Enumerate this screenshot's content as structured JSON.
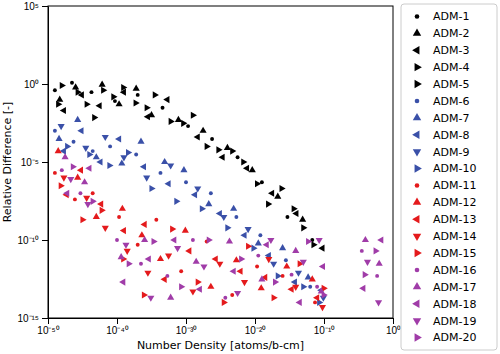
{
  "chart_data": {
    "type": "scatter",
    "x_label": "Number Density [atoms/b-cm]",
    "y_label": "Relative Difference [-]",
    "log": true,
    "grid": false,
    "legend": "right",
    "xlim": [
      1e-50,
      1
    ],
    "ylim": [
      1e-15,
      100000
    ],
    "xticks": [
      {
        "value": 1e-50,
        "label": "10⁻⁵⁰"
      },
      {
        "value": 1e-40,
        "label": "10⁻⁴⁰"
      },
      {
        "value": 1e-30,
        "label": "10⁻³⁰"
      },
      {
        "value": 1e-20,
        "label": "10⁻²⁰"
      },
      {
        "value": 1e-10,
        "label": "10⁻¹⁰"
      },
      {
        "value": 1,
        "label": "10⁰"
      }
    ],
    "yticks": [
      {
        "value": 1e-15,
        "label": "10⁻¹⁵"
      },
      {
        "value": 1e-10,
        "label": "10⁻¹⁰"
      },
      {
        "value": 1e-05,
        "label": "10⁻⁵"
      },
      {
        "value": 1,
        "label": "10⁰"
      },
      {
        "value": 100000,
        "label": "10⁵"
      }
    ],
    "series": [
      {
        "name": "ADM-1",
        "color": "#000000",
        "marker": "point",
        "x": [
          1e-49,
          3e-47,
          2e-44,
          5e-41,
          1e-37,
          4e-34,
          2e-30,
          6e-27,
          3e-23,
          1e-19,
          5e-16,
          2e-12
        ],
        "values": [
          0.4,
          1.2,
          0.3,
          0.08,
          0.2,
          0.03,
          0.002,
          0.0003,
          2e-05,
          5e-07,
          3e-09,
          1e-10
        ]
      },
      {
        "name": "ADM-2",
        "color": "#000000",
        "marker": "triangle-up",
        "x": [
          5e-49,
          1e-46,
          7e-43,
          2e-40,
          6e-38,
          1e-35,
          8e-32,
          3e-28,
          1e-24,
          4e-21,
          2e-17,
          8e-14
        ],
        "values": [
          0.1,
          0.6,
          0.9,
          0.05,
          0.5,
          0.01,
          0.005,
          0.001,
          8e-05,
          3e-06,
          6e-08,
          2e-09
        ]
      },
      {
        "name": "ADM-3",
        "color": "#000000",
        "marker": "triangle-left",
        "x": [
          2e-48,
          8e-46,
          3e-43,
          1e-39,
          3e-36,
          2e-33,
          5e-29,
          2e-25,
          7e-22,
          3e-18,
          1e-14,
          6e-11
        ],
        "values": [
          0.02,
          0.2,
          0.04,
          0.3,
          0.008,
          0.1,
          0.0004,
          2e-05,
          4e-06,
          1e-07,
          5e-09,
          3e-11
        ]
      },
      {
        "name": "ADM-4",
        "color": "#000000",
        "marker": "triangle-right",
        "x": [
          1e-48,
          4e-45,
          1e-42,
          8e-40,
          2e-36,
          6e-33,
          1e-29,
          5e-26,
          2e-22,
          8e-19,
          4e-15,
          3e-12
        ],
        "values": [
          0.8,
          0.05,
          0.4,
          0.6,
          0.03,
          0.004,
          0.01,
          6e-05,
          1e-05,
          2e-08,
          1e-08,
          5e-11
        ]
      },
      {
        "name": "ADM-5",
        "color": "#000000",
        "marker": "triangle-right",
        "x": [
          3e-49,
          2e-46,
          5e-44,
          3e-41,
          5e-38,
          3e-35,
          4e-31,
          1e-27,
          5e-24,
          2e-20,
          7e-17,
          1e-13
        ],
        "values": [
          0.05,
          0.3,
          0.007,
          0.15,
          0.06,
          0.2,
          0.003,
          0.0001,
          5e-05,
          4e-07,
          2e-07,
          6e-10
        ]
      },
      {
        "name": "ADM-6",
        "color": "#3a50a8",
        "marker": "point",
        "x": [
          1e-49,
          5e-47,
          3e-44,
          1e-41,
          6e-38,
          2e-34,
          1e-30,
          4e-27,
          2e-23,
          6e-20,
          3e-16,
          1e-12
        ],
        "values": [
          0.001,
          0.0002,
          5e-05,
          0.0001,
          3e-05,
          2e-06,
          5e-07,
          1e-07,
          3e-09,
          2e-10,
          5e-12,
          1e-13
        ]
      },
      {
        "name": "ADM-7",
        "color": "#3a50a8",
        "marker": "triangle-up",
        "x": [
          4e-49,
          2e-46,
          1e-43,
          5e-40,
          3e-37,
          8e-34,
          5e-31,
          2e-27,
          8e-24,
          3e-20,
          1e-16,
          5e-13
        ],
        "values": [
          0.0003,
          0.005,
          2e-05,
          8e-06,
          0.0002,
          1e-05,
          3e-06,
          2e-08,
          1e-08,
          6e-11,
          3e-11,
          4e-13
        ]
      },
      {
        "name": "ADM-8",
        "color": "#3a50a8",
        "marker": "triangle-left",
        "x": [
          2e-48,
          7e-46,
          4e-43,
          2e-40,
          8e-37,
          3e-33,
          2e-29,
          8e-26,
          3e-22,
          1e-18,
          6e-15,
          4e-11
        ],
        "values": [
          5e-05,
          0.001,
          1e-05,
          0.0003,
          5e-06,
          4e-07,
          8e-08,
          5e-09,
          2e-10,
          1e-11,
          2e-13,
          6e-14
        ]
      },
      {
        "name": "ADM-9",
        "color": "#3a50a8",
        "marker": "triangle-down",
        "x": [
          8e-49,
          3e-45,
          2e-42,
          1e-39,
          2e-36,
          6e-33,
          5e-29,
          3e-25,
          1e-21,
          5e-18,
          2e-14,
          8e-11
        ],
        "values": [
          0.002,
          8e-05,
          0.0004,
          2e-05,
          1e-06,
          6e-06,
          2e-07,
          3e-09,
          5e-10,
          3e-12,
          8e-13,
          2e-14
        ]
      },
      {
        "name": "ADM-10",
        "color": "#3a50a8",
        "marker": "triangle-right",
        "x": [
          6e-48,
          1e-44,
          8e-42,
          4e-39,
          1e-35,
          4e-32,
          2e-28,
          1e-24,
          6e-21,
          2e-17,
          1e-13,
          2e-11
        ],
        "values": [
          0.0001,
          3e-05,
          6e-06,
          4e-05,
          2e-07,
          3e-08,
          1e-08,
          6e-10,
          3e-11,
          5e-13,
          1e-13,
          1e-14
        ]
      },
      {
        "name": "ADM-11",
        "color": "#e41a1c",
        "marker": "point",
        "x": [
          1e-49,
          8e-47,
          3e-44,
          2e-40,
          1e-37,
          5e-35,
          2e-31,
          1e-27,
          5e-24,
          2e-20,
          1e-16,
          5e-12
        ],
        "values": [
          2e-06,
          4e-08,
          1e-07,
          3e-09,
          5e-11,
          2e-09,
          1e-12,
          8e-11,
          3e-14,
          2e-12,
          5e-13,
          1e-14
        ]
      },
      {
        "name": "ADM-12",
        "color": "#e41a1c",
        "marker": "triangle-up",
        "x": [
          3e-49,
          2e-46,
          1e-43,
          6e-40,
          4e-37,
          2e-34,
          8e-31,
          4e-27,
          2e-23,
          8e-20,
          4e-16,
          2e-12
        ],
        "values": [
          5e-05,
          1e-06,
          3e-09,
          1e-08,
          2e-10,
          6e-12,
          4e-10,
          1e-13,
          5e-12,
          8e-14,
          2e-12,
          3e-13
        ]
      },
      {
        "name": "ADM-13",
        "color": "#e41a1c",
        "marker": "triangle-left",
        "x": [
          5e-48,
          6e-46,
          5e-43,
          1e-39,
          1e-36,
          8e-34,
          3e-30,
          2e-26,
          8e-23,
          3e-19,
          2e-15,
          1e-11
        ],
        "values": [
          8e-08,
          3e-06,
          2e-08,
          4e-10,
          1e-09,
          3e-13,
          2e-11,
          6e-12,
          1e-12,
          4e-13,
          7e-14,
          2e-14
        ]
      },
      {
        "name": "ADM-14",
        "color": "#e41a1c",
        "marker": "triangle-down",
        "x": [
          2e-48,
          4e-45,
          2e-42,
          3e-39,
          3e-36,
          3e-33,
          1e-29,
          8e-26,
          3e-22,
          1e-18,
          8e-15,
          6e-11
        ],
        "values": [
          1e-06,
          5e-08,
          6e-10,
          2e-11,
          8e-13,
          1e-11,
          5e-14,
          3e-12,
          2e-13,
          6e-12,
          1e-13,
          5e-15
        ]
      },
      {
        "name": "ADM-15",
        "color": "#e41a1c",
        "marker": "triangle-right",
        "x": [
          7e-49,
          1e-45,
          6e-43,
          8e-40,
          8e-37,
          1e-32,
          5e-29,
          3e-25,
          1e-21,
          5e-18,
          3e-14,
          9e-11
        ],
        "values": [
          3e-07,
          2e-09,
          8e-09,
          6e-12,
          3e-14,
          5e-10,
          2e-13,
          1e-14,
          4e-11,
          2e-14,
          3e-12,
          8e-14
        ]
      },
      {
        "name": "ADM-16",
        "color": "#a03ca8",
        "marker": "point",
        "x": [
          1e-48,
          5e-46,
          1e-40,
          3e-37,
          2e-33,
          1e-29,
          5e-25,
          3e-20,
          2e-15,
          1e-11,
          3e-05,
          0.005
        ],
        "values": [
          3e-06,
          1e-07,
          1e-10,
          3e-12,
          5e-13,
          1e-10,
          2e-14,
          1e-11,
          6e-13,
          1e-13,
          2e-11,
          5e-13
        ]
      },
      {
        "name": "ADM-17",
        "color": "#a03ca8",
        "marker": "triangle-up",
        "x": [
          3e-48,
          2e-45,
          4e-40,
          1e-36,
          6e-33,
          3e-29,
          2e-24,
          1e-19,
          8e-15,
          4e-11,
          0.0001,
          0.01
        ],
        "values": [
          2e-05,
          5e-07,
          8e-12,
          1e-10,
          2e-14,
          4e-12,
          8e-11,
          3e-13,
          2e-11,
          5e-14,
          1e-10,
          3e-12
        ]
      },
      {
        "name": "ADM-18",
        "color": "#a03ca8",
        "marker": "triangle-left",
        "x": [
          6e-48,
          1e-44,
          8e-40,
          4e-36,
          2e-32,
          1e-28,
          8e-24,
          5e-19,
          3e-14,
          7e-11,
          5e-05,
          0.02
        ],
        "values": [
          1e-07,
          4e-06,
          2e-13,
          6e-12,
          1e-10,
          7e-14,
          1e-12,
          5e-11,
          1e-14,
          2e-12,
          8e-14,
          1e-10
        ]
      },
      {
        "name": "ADM-19",
        "color": "#a03ca8",
        "marker": "triangle-down",
        "x": [
          2e-47,
          6e-45,
          2e-39,
          8e-36,
          6e-32,
          4e-28,
          3e-23,
          2e-18,
          1e-13,
          2e-11,
          0.0002,
          0.008
        ],
        "values": [
          8e-07,
          2e-08,
          5e-11,
          2e-14,
          3e-11,
          2e-12,
          4e-14,
          1e-10,
          4e-12,
          1e-10,
          4e-12,
          1e-14
        ]
      },
      {
        "name": "ADM-20",
        "color": "#a03ca8",
        "marker": "triangle-right",
        "x": [
          4e-47,
          3e-44,
          5e-39,
          2e-35,
          2e-31,
          2e-27,
          1e-22,
          8e-18,
          5e-13,
          9e-11,
          8e-05,
          0.003
        ],
        "values": [
          5e-06,
          3e-08,
          3e-12,
          8e-11,
          1e-13,
          1e-10,
          6e-12,
          2e-13,
          8e-11,
          3e-14,
          6e-13,
          2e-11
        ]
      }
    ]
  }
}
